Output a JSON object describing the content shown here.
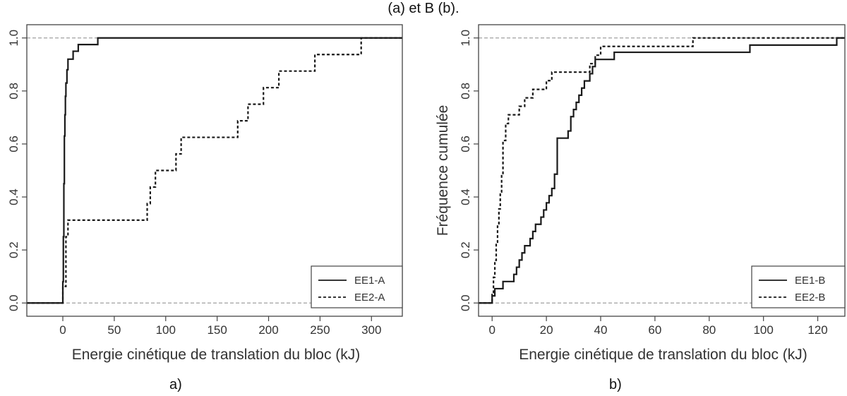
{
  "figure": {
    "caption": "(a) et B (b).",
    "panel_labels": [
      "a)",
      "b)"
    ]
  },
  "colors": {
    "line": "#1a1a1a",
    "refline": "#a0a0a0",
    "axis": "#444444",
    "text": "#333333"
  },
  "chart_data": [
    {
      "type": "line",
      "step": true,
      "title": "",
      "xlabel": "Energie cinétique de translation du bloc (kJ)",
      "ylabel": "Fréquence cumulée",
      "xlim": [
        -35,
        330
      ],
      "ylim": [
        0,
        1
      ],
      "xticks": [
        0,
        50,
        100,
        150,
        200,
        250,
        300
      ],
      "yticks": [
        0.0,
        0.2,
        0.4,
        0.6,
        0.8,
        1.0
      ],
      "tick_labels_y": [
        "0.0",
        "0.2",
        "0.4",
        "0.6",
        "0.8",
        "1.0"
      ],
      "reference_lines_y": [
        0,
        1
      ],
      "legend": {
        "position": "bottom-right",
        "entries": [
          "EE1-A",
          "EE2-A"
        ]
      },
      "series": [
        {
          "name": "EE1-A",
          "style": "solid",
          "x": [
            0,
            0.5,
            1,
            1.5,
            2,
            2.5,
            3,
            4,
            5,
            6,
            10,
            15,
            25,
            34
          ],
          "y": [
            0.08,
            0.25,
            0.45,
            0.63,
            0.71,
            0.78,
            0.83,
            0.88,
            0.92,
            0.92,
            0.95,
            0.975,
            0.975,
            1.0
          ]
        },
        {
          "name": "EE2-A",
          "style": "dashed",
          "x": [
            0,
            3,
            5,
            82,
            85,
            90,
            110,
            115,
            170,
            175,
            180,
            190,
            195,
            210,
            245,
            290
          ],
          "y": [
            0.0625,
            0.25,
            0.3125,
            0.375,
            0.4375,
            0.5,
            0.5625,
            0.625,
            0.6875,
            0.6875,
            0.75,
            0.75,
            0.8125,
            0.875,
            0.9375,
            1.0
          ]
        }
      ]
    },
    {
      "type": "line",
      "step": true,
      "title": "",
      "xlabel": "Energie cinétique de translation du bloc (kJ)",
      "ylabel": "Fréquence cumulée",
      "xlim": [
        -5,
        130
      ],
      "ylim": [
        0,
        1
      ],
      "xticks": [
        0,
        20,
        40,
        60,
        80,
        100,
        120
      ],
      "yticks": [
        0.0,
        0.2,
        0.4,
        0.6,
        0.8,
        1.0
      ],
      "tick_labels_y": [
        "0.0",
        "0.2",
        "0.4",
        "0.6",
        "0.8",
        "1.0"
      ],
      "reference_lines_y": [
        0,
        1
      ],
      "legend": {
        "position": "bottom-right",
        "entries": [
          "EE1-B",
          "EE2-B"
        ]
      },
      "series": [
        {
          "name": "EE1-B",
          "style": "solid",
          "x": [
            0,
            1,
            4,
            8,
            9,
            10,
            11,
            12,
            14,
            15,
            16,
            18,
            19,
            20,
            21,
            22,
            23,
            24,
            28,
            29,
            30,
            31,
            32,
            33,
            34,
            36,
            37,
            38,
            40,
            45,
            95,
            127
          ],
          "y": [
            0.027,
            0.054,
            0.081,
            0.108,
            0.135,
            0.162,
            0.189,
            0.216,
            0.243,
            0.27,
            0.297,
            0.324,
            0.351,
            0.378,
            0.405,
            0.432,
            0.486,
            0.622,
            0.649,
            0.703,
            0.73,
            0.757,
            0.784,
            0.811,
            0.838,
            0.865,
            0.892,
            0.919,
            0.919,
            0.946,
            0.973,
            1.0
          ]
        },
        {
          "name": "EE2-B",
          "style": "dashed",
          "x": [
            0,
            0.5,
            1,
            1.5,
            2,
            2.5,
            3,
            3.5,
            4,
            5,
            6,
            10,
            12,
            15,
            17,
            20,
            22,
            30,
            36,
            38,
            40,
            74
          ],
          "y": [
            0.032,
            0.097,
            0.161,
            0.226,
            0.29,
            0.355,
            0.419,
            0.484,
            0.613,
            0.677,
            0.71,
            0.742,
            0.774,
            0.806,
            0.806,
            0.839,
            0.871,
            0.871,
            0.903,
            0.935,
            0.968,
            1.0
          ]
        }
      ]
    }
  ]
}
